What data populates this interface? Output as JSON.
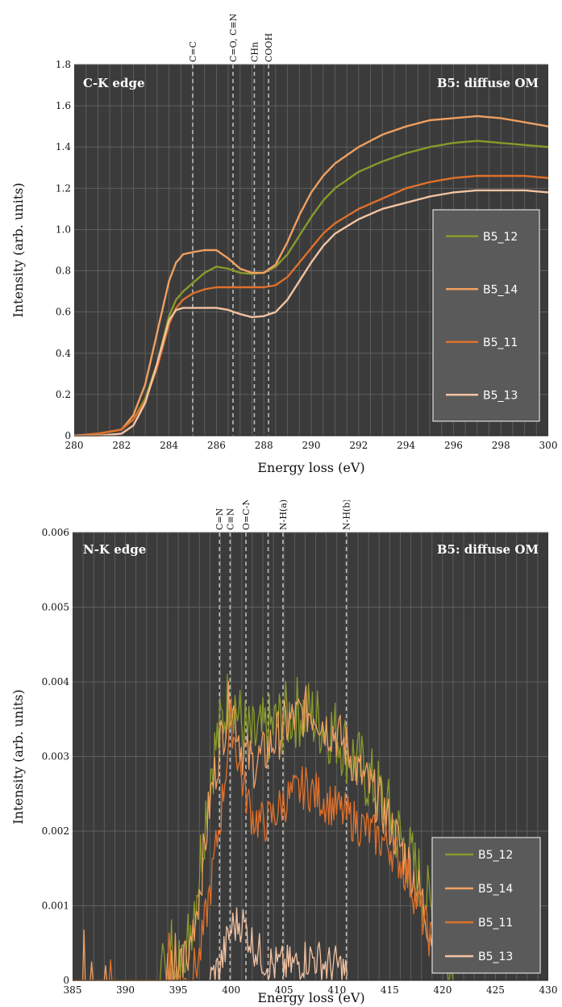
{
  "colors": {
    "panel_bg": "#3b3b3b",
    "grid": "#5e5e5e",
    "marker": "#bdbdbd",
    "legend_bg": "#5a5a5a",
    "legend_border": "#dcdcdc"
  },
  "chart_data": [
    {
      "type": "line",
      "panel_label": "C-K edge",
      "sample_label": "B5: diffuse OM",
      "xlabel": "Energy loss (eV)",
      "ylabel": "Intensity (arb. units)",
      "xlim": [
        280,
        300
      ],
      "ylim": [
        0,
        1.8
      ],
      "xticks": [
        "280",
        "282",
        "284",
        "286",
        "288",
        "290",
        "292",
        "294",
        "296",
        "298",
        "300"
      ],
      "yticks": [
        "0",
        "0.2",
        "0.4",
        "0.6",
        "0.8",
        "1.0",
        "1.2",
        "1.4",
        "1.6",
        "1.8"
      ],
      "xtick_values": [
        280,
        282,
        284,
        286,
        288,
        290,
        292,
        294,
        296,
        298,
        300
      ],
      "ytick_values": [
        0,
        0.2,
        0.4,
        0.6,
        0.8,
        1.0,
        1.2,
        1.4,
        1.6,
        1.8
      ],
      "grid": true,
      "legend_position": "bottom-right",
      "markers": [
        {
          "x": 285.0,
          "label": "C=C"
        },
        {
          "x": 286.7,
          "label": "C=O, C≡N"
        },
        {
          "x": 287.6,
          "label": "CHn"
        },
        {
          "x": 288.2,
          "label": "COOH"
        }
      ],
      "series": [
        {
          "name": "B5_12",
          "color": "#8a9a2a",
          "x": [
            280,
            281,
            282,
            282.5,
            283,
            283.5,
            284,
            284.3,
            284.6,
            285,
            285.5,
            286,
            286.5,
            287,
            287.5,
            288,
            288.5,
            289,
            289.5,
            290,
            290.5,
            291,
            292,
            293,
            294,
            295,
            296,
            297,
            298,
            299,
            300
          ],
          "y": [
            0,
            0.01,
            0.03,
            0.08,
            0.18,
            0.35,
            0.58,
            0.66,
            0.7,
            0.74,
            0.79,
            0.82,
            0.81,
            0.79,
            0.785,
            0.79,
            0.82,
            0.88,
            0.97,
            1.06,
            1.14,
            1.2,
            1.28,
            1.33,
            1.37,
            1.4,
            1.42,
            1.43,
            1.42,
            1.41,
            1.4
          ]
        },
        {
          "name": "B5_14",
          "color": "#f0a060",
          "x": [
            280,
            281,
            282,
            282.5,
            283,
            283.5,
            284,
            284.3,
            284.6,
            285,
            285.5,
            286,
            286.5,
            287,
            287.5,
            288,
            288.5,
            289,
            289.5,
            290,
            290.5,
            291,
            292,
            293,
            294,
            295,
            296,
            297,
            298,
            299,
            300
          ],
          "y": [
            0,
            0.01,
            0.03,
            0.1,
            0.25,
            0.5,
            0.75,
            0.84,
            0.88,
            0.89,
            0.9,
            0.9,
            0.86,
            0.81,
            0.79,
            0.79,
            0.83,
            0.94,
            1.07,
            1.18,
            1.26,
            1.32,
            1.4,
            1.46,
            1.5,
            1.53,
            1.54,
            1.55,
            1.54,
            1.52,
            1.5
          ]
        },
        {
          "name": "B5_11",
          "color": "#e0702a",
          "x": [
            280,
            281,
            282,
            282.5,
            283,
            283.5,
            284,
            284.3,
            284.6,
            285,
            285.5,
            286,
            286.5,
            287,
            287.5,
            288,
            288.5,
            289,
            289.5,
            290,
            290.5,
            291,
            292,
            293,
            294,
            295,
            296,
            297,
            298,
            299,
            300
          ],
          "y": [
            0,
            0.01,
            0.03,
            0.08,
            0.17,
            0.33,
            0.54,
            0.62,
            0.66,
            0.69,
            0.71,
            0.72,
            0.72,
            0.72,
            0.72,
            0.72,
            0.73,
            0.77,
            0.84,
            0.91,
            0.98,
            1.03,
            1.1,
            1.15,
            1.2,
            1.23,
            1.25,
            1.26,
            1.26,
            1.26,
            1.25
          ]
        },
        {
          "name": "B5_13",
          "color": "#f3c3a3",
          "x": [
            280,
            281,
            282,
            282.5,
            283,
            283.5,
            284,
            284.3,
            284.6,
            285,
            285.5,
            286,
            286.5,
            287,
            287.5,
            288,
            288.5,
            289,
            289.5,
            290,
            290.5,
            291,
            292,
            293,
            294,
            295,
            296,
            297,
            298,
            299,
            300
          ],
          "y": [
            0,
            0,
            0.01,
            0.05,
            0.16,
            0.35,
            0.56,
            0.61,
            0.62,
            0.62,
            0.62,
            0.62,
            0.61,
            0.59,
            0.575,
            0.58,
            0.6,
            0.66,
            0.75,
            0.84,
            0.92,
            0.98,
            1.05,
            1.1,
            1.13,
            1.16,
            1.18,
            1.19,
            1.19,
            1.19,
            1.18
          ]
        }
      ]
    },
    {
      "type": "line",
      "panel_label": "N-K edge",
      "sample_label": "B5: diffuse OM",
      "xlabel": "Energy loss (eV)",
      "ylabel": "Intensity (arb. units)",
      "xlim": [
        385,
        430
      ],
      "ylim": [
        0,
        0.006
      ],
      "xticks": [
        "385",
        "390",
        "395",
        "400",
        "405",
        "410",
        "415",
        "420",
        "425",
        "430"
      ],
      "yticks": [
        "0",
        "0.001",
        "0.002",
        "0.003",
        "0.004",
        "0.005",
        "0.006"
      ],
      "xtick_values": [
        385,
        390,
        395,
        400,
        405,
        410,
        415,
        420,
        425,
        430
      ],
      "ytick_values": [
        0,
        0.001,
        0.002,
        0.003,
        0.004,
        0.005,
        0.006
      ],
      "grid": true,
      "legend_position": "bottom-right",
      "markers": [
        {
          "x": 398.9,
          "label": "C=N"
        },
        {
          "x": 399.9,
          "label": "C≡N"
        },
        {
          "x": 401.4,
          "label": "O=C-N"
        },
        {
          "x": 403.5,
          "label": ""
        },
        {
          "x": 404.9,
          "label": "N-H(a)"
        },
        {
          "x": 410.9,
          "label": "N-H(b)"
        }
      ],
      "series": [
        {
          "name": "B5_12",
          "color": "#8a9a2a",
          "noise": 0.0005,
          "x": [
            385,
            388,
            391,
            393,
            395,
            396,
            397,
            398,
            399,
            400,
            401,
            402,
            403,
            404,
            405,
            406,
            407,
            408,
            409,
            410,
            411,
            412,
            413,
            414,
            415,
            416,
            417,
            418,
            419,
            420,
            421
          ],
          "y": [
            0,
            0,
            0,
            0,
            0.0001,
            0.0006,
            0.0015,
            0.0028,
            0.0034,
            0.0039,
            0.0034,
            0.0032,
            0.0033,
            0.0034,
            0.0035,
            0.0036,
            0.0036,
            0.0035,
            0.0034,
            0.0033,
            0.0031,
            0.0029,
            0.0027,
            0.0025,
            0.0022,
            0.0019,
            0.0016,
            0.0013,
            0.0009,
            0.0005,
            0.0001
          ]
        },
        {
          "name": "B5_14",
          "color": "#f0a060",
          "noise": 0.00035,
          "x": [
            385,
            393,
            395,
            396,
            397,
            398,
            399,
            400,
            401,
            402,
            403,
            404,
            405,
            406,
            407,
            408,
            409,
            410,
            411,
            412,
            413,
            414,
            415,
            416,
            417,
            418,
            419,
            420
          ],
          "y": [
            0,
            0,
            0,
            0.0004,
            0.0012,
            0.0024,
            0.0032,
            0.0038,
            0.0031,
            0.0029,
            0.003,
            0.0032,
            0.0034,
            0.0035,
            0.0036,
            0.0036,
            0.0034,
            0.0033,
            0.0031,
            0.0028,
            0.0026,
            0.0024,
            0.0021,
            0.0018,
            0.0015,
            0.0011,
            0.0006,
            0.0002
          ]
        },
        {
          "name": "B5_11",
          "color": "#e0702a",
          "noise": 0.0003,
          "x": [
            385,
            394,
            396,
            397,
            398,
            399,
            400,
            401,
            402,
            403,
            404,
            405,
            406,
            407,
            408,
            409,
            410,
            411,
            412,
            413,
            414,
            415,
            416,
            417,
            418,
            419,
            420
          ],
          "y": [
            0,
            0,
            0,
            0.0003,
            0.0012,
            0.0022,
            0.0035,
            0.0027,
            0.0022,
            0.0021,
            0.0022,
            0.0024,
            0.0025,
            0.0026,
            0.0025,
            0.0024,
            0.0023,
            0.0022,
            0.0021,
            0.002,
            0.0019,
            0.0018,
            0.0016,
            0.0013,
            0.0009,
            0.0005,
            0.0001
          ]
        },
        {
          "name": "B5_13",
          "color": "#f3c3a3",
          "noise": 0.00028,
          "x": [
            398,
            399,
            400,
            401,
            402,
            403,
            404,
            405,
            406,
            407,
            408,
            409,
            410,
            410.9,
            411
          ],
          "y": [
            0,
            0.0002,
            0.0007,
            0.0008,
            0.0005,
            0.0003,
            0.0002,
            0.0002,
            0.0002,
            0.0003,
            0.0003,
            0.0002,
            0.0002,
            0.0001,
            0
          ]
        }
      ]
    }
  ]
}
